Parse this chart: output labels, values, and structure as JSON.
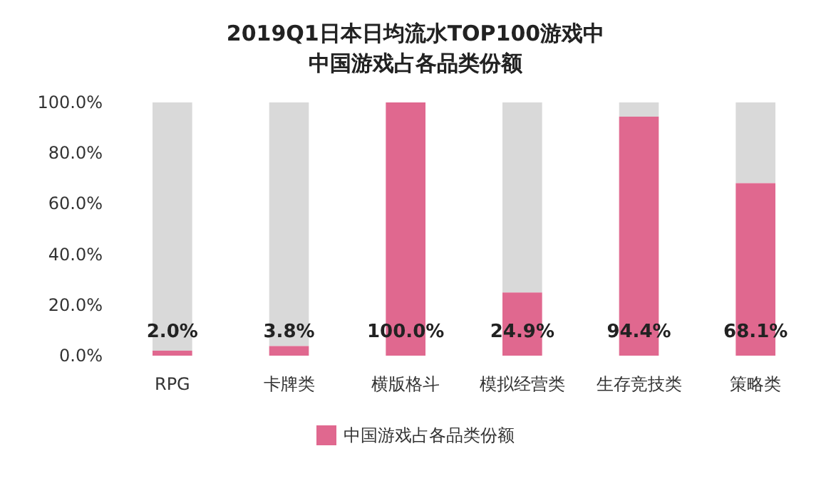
{
  "chart_data": {
    "type": "bar",
    "title": "2019Q1日本日均流水TOP100游戏中中国游戏占各品类份额",
    "categories": [
      "RPG",
      "卡牌类",
      "横版格斗",
      "模拟经营类",
      "生存竞技类",
      "策略类"
    ],
    "stacked": true,
    "series": [
      {
        "name": "中国游戏占各品类份额",
        "color": "#e0688f",
        "values": [
          2.0,
          3.8,
          100.0,
          24.9,
          94.4,
          68.1
        ],
        "value_labels": [
          "2.0%",
          "3.8%",
          "100.0%",
          "24.9%",
          "94.4%",
          "68.1%"
        ]
      },
      {
        "color": "#d9d9d9",
        "values": [
          98.0,
          96.2,
          0.0,
          75.1,
          5.6,
          31.9
        ]
      }
    ],
    "ylim": [
      0,
      100
    ],
    "yticks": [
      {
        "value": 0,
        "label": "0.0%"
      },
      {
        "value": 20,
        "label": "20.0%"
      },
      {
        "value": 40,
        "label": "40.0%"
      },
      {
        "value": 60,
        "label": "60.0%"
      },
      {
        "value": 80,
        "label": "80.0%"
      },
      {
        "value": 100,
        "label": "100.0%"
      }
    ],
    "grid": false,
    "legend": "bottom"
  }
}
